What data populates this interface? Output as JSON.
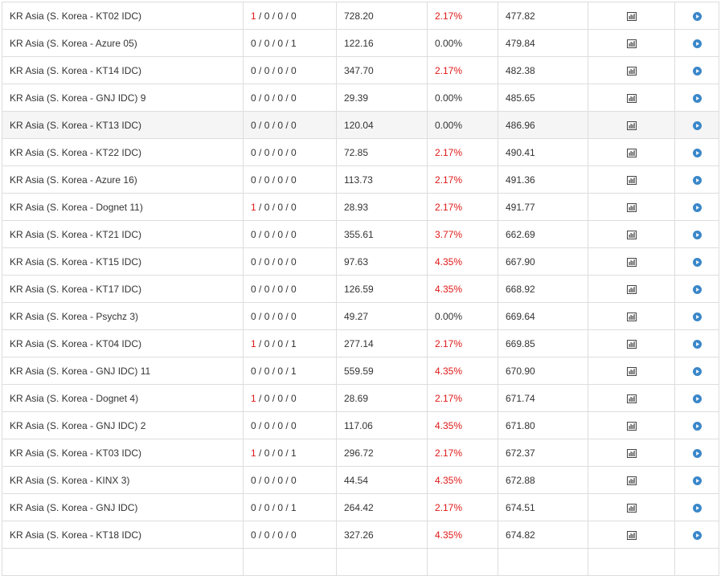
{
  "colors": {
    "loss_red": "#e01818",
    "text": "#333333",
    "border": "#dddddd",
    "play_blue": "#3a87c9",
    "highlight_row": "#f5f5f5"
  },
  "icons": {
    "chart": "bar-chart-icon",
    "play": "play-circle-icon"
  },
  "rows": [
    {
      "name": "KR Asia (S. Korea - KT02 IDC)",
      "mon_first": "1",
      "mon_rest": " / 0 / 0 / 0",
      "ping": "728.20",
      "loss": "2.17%",
      "dist": "477.82"
    },
    {
      "name": "KR Asia (S. Korea - Azure 05)",
      "mon_first": "0",
      "mon_rest": " / 0 / 0 / 1",
      "ping": "122.16",
      "loss": "0.00%",
      "dist": "479.84"
    },
    {
      "name": "KR Asia (S. Korea - KT14 IDC)",
      "mon_first": "0",
      "mon_rest": " / 0 / 0 / 0",
      "ping": "347.70",
      "loss": "2.17%",
      "dist": "482.38"
    },
    {
      "name": "KR Asia (S. Korea - GNJ IDC) 9",
      "mon_first": "0",
      "mon_rest": " / 0 / 0 / 0",
      "ping": "29.39",
      "loss": "0.00%",
      "dist": "485.65"
    },
    {
      "name": "KR Asia (S. Korea - KT13 IDC)",
      "mon_first": "0",
      "mon_rest": " / 0 / 0 / 0",
      "ping": "120.04",
      "loss": "0.00%",
      "dist": "486.96"
    },
    {
      "name": "KR Asia (S. Korea - KT22 IDC)",
      "mon_first": "0",
      "mon_rest": " / 0 / 0 / 0",
      "ping": "72.85",
      "loss": "2.17%",
      "dist": "490.41"
    },
    {
      "name": "KR Asia (S. Korea - Azure 16)",
      "mon_first": "0",
      "mon_rest": " / 0 / 0 / 0",
      "ping": "113.73",
      "loss": "2.17%",
      "dist": "491.36"
    },
    {
      "name": "KR Asia (S. Korea - Dognet 11)",
      "mon_first": "1",
      "mon_rest": " / 0 / 0 / 0",
      "ping": "28.93",
      "loss": "2.17%",
      "dist": "491.77"
    },
    {
      "name": "KR Asia (S. Korea - KT21 IDC)",
      "mon_first": "0",
      "mon_rest": " / 0 / 0 / 0",
      "ping": "355.61",
      "loss": "3.77%",
      "dist": "662.69"
    },
    {
      "name": "KR Asia (S. Korea - KT15 IDC)",
      "mon_first": "0",
      "mon_rest": " / 0 / 0 / 0",
      "ping": "97.63",
      "loss": "4.35%",
      "dist": "667.90"
    },
    {
      "name": "KR Asia (S. Korea - KT17 IDC)",
      "mon_first": "0",
      "mon_rest": " / 0 / 0 / 0",
      "ping": "126.59",
      "loss": "4.35%",
      "dist": "668.92"
    },
    {
      "name": "KR Asia (S. Korea - Psychz 3)",
      "mon_first": "0",
      "mon_rest": " / 0 / 0 / 0",
      "ping": "49.27",
      "loss": "0.00%",
      "dist": "669.64"
    },
    {
      "name": "KR Asia (S. Korea - KT04 IDC)",
      "mon_first": "1",
      "mon_rest": " / 0 / 0 / 1",
      "ping": "277.14",
      "loss": "2.17%",
      "dist": "669.85"
    },
    {
      "name": "KR Asia (S. Korea - GNJ IDC) 11",
      "mon_first": "0",
      "mon_rest": " / 0 / 0 / 1",
      "ping": "559.59",
      "loss": "4.35%",
      "dist": "670.90"
    },
    {
      "name": "KR Asia (S. Korea - Dognet 4)",
      "mon_first": "1",
      "mon_rest": " / 0 / 0 / 0",
      "ping": "28.69",
      "loss": "2.17%",
      "dist": "671.74"
    },
    {
      "name": "KR Asia (S. Korea - GNJ IDC) 2",
      "mon_first": "0",
      "mon_rest": " / 0 / 0 / 0",
      "ping": "117.06",
      "loss": "4.35%",
      "dist": "671.80"
    },
    {
      "name": "KR Asia (S. Korea - KT03 IDC)",
      "mon_first": "1",
      "mon_rest": " / 0 / 0 / 1",
      "ping": "296.72",
      "loss": "2.17%",
      "dist": "672.37"
    },
    {
      "name": "KR Asia (S. Korea - KINX 3)",
      "mon_first": "0",
      "mon_rest": " / 0 / 0 / 0",
      "ping": "44.54",
      "loss": "4.35%",
      "dist": "672.88"
    },
    {
      "name": "KR Asia (S. Korea - GNJ IDC)",
      "mon_first": "0",
      "mon_rest": " / 0 / 0 / 1",
      "ping": "264.42",
      "loss": "2.17%",
      "dist": "674.51"
    },
    {
      "name": "KR Asia (S. Korea - KT18 IDC)",
      "mon_first": "0",
      "mon_rest": " / 0 / 0 / 0",
      "ping": "327.26",
      "loss": "4.35%",
      "dist": "674.82"
    },
    {
      "name": "",
      "mon_first": "",
      "mon_rest": "",
      "ping": "",
      "loss": "",
      "dist": ""
    }
  ],
  "hover_row_index": 4
}
